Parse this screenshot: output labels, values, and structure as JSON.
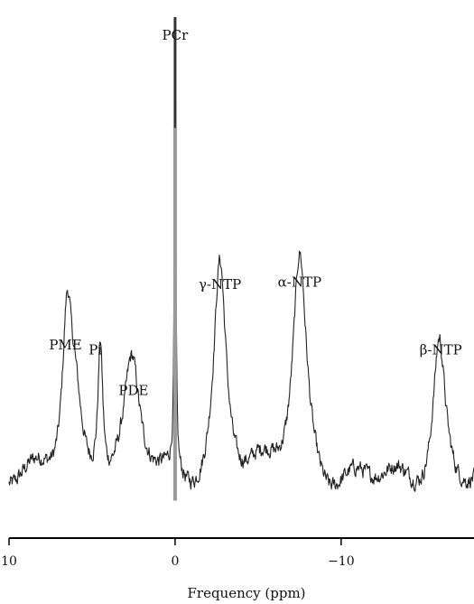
{
  "chart_data": {
    "type": "line",
    "title": "",
    "xlabel": "Frequency (ppm)",
    "ylabel": "",
    "x_reversed": true,
    "xlim": [
      10,
      -18
    ],
    "xticks": [
      {
        "value": 10,
        "label": "10"
      },
      {
        "value": 0,
        "label": "0"
      },
      {
        "value": -10,
        "label": "−10"
      }
    ],
    "ylim": [
      0,
      100
    ],
    "grid": false,
    "series": [
      {
        "name": "",
        "peaks": [
          {
            "ppm": 6.5,
            "height": 33,
            "width": 0.35
          },
          {
            "ppm": 6.0,
            "height": 14,
            "width": 0.45
          },
          {
            "ppm": 4.5,
            "height": 28,
            "width": 0.18
          },
          {
            "ppm": 2.6,
            "height": 22,
            "width": 0.55
          },
          {
            "ppm": 0.0,
            "height": 93,
            "width": 0.05
          },
          {
            "ppm": -2.7,
            "height": 44,
            "width": 0.45
          },
          {
            "ppm": -7.5,
            "height": 46,
            "width": 0.5
          },
          {
            "ppm": -15.9,
            "height": 30,
            "width": 0.45
          }
        ],
        "baseline": 9
      }
    ],
    "annotations": [
      {
        "text": "PCr",
        "ppm": 0.0,
        "height": 97.5
      },
      {
        "text": "PME",
        "ppm": 6.6,
        "height": 36
      },
      {
        "text": "Pi",
        "ppm": 4.8,
        "height": 35
      },
      {
        "text": "PDE",
        "ppm": 2.5,
        "height": 27
      },
      {
        "text": "γ-NTP",
        "ppm": -2.7,
        "height": 48
      },
      {
        "text": "α-NTP",
        "ppm": -7.5,
        "height": 48.5
      },
      {
        "text": "β-NTP",
        "ppm": -16.0,
        "height": 35
      }
    ]
  }
}
